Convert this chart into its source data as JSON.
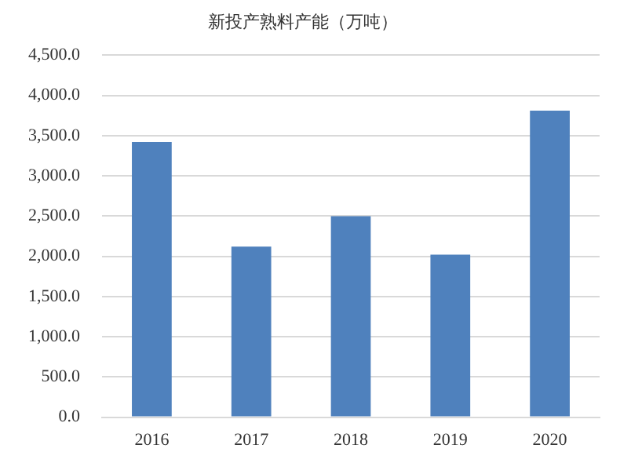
{
  "chart_data": {
    "type": "bar",
    "title": "新投产熟料产能（万吨）",
    "categories": [
      "2016",
      "2017",
      "2018",
      "2019",
      "2020"
    ],
    "values": [
      3420,
      2120,
      2500,
      2020,
      3810
    ],
    "color": "#4f81bd",
    "ylim": [
      0,
      4500
    ],
    "yticks": [
      {
        "value": 0,
        "label": "0.0"
      },
      {
        "value": 500,
        "label": "500.0"
      },
      {
        "value": 1000,
        "label": "1,000.0"
      },
      {
        "value": 1500,
        "label": "1,500.0"
      },
      {
        "value": 2000,
        "label": "2,000.0"
      },
      {
        "value": 2500,
        "label": "2,500.0"
      },
      {
        "value": 3000,
        "label": "3,000.0"
      },
      {
        "value": 3500,
        "label": "3,500.0"
      },
      {
        "value": 4000,
        "label": "4,000.0"
      },
      {
        "value": 4500,
        "label": "4,500.0"
      }
    ],
    "grid": "y"
  }
}
